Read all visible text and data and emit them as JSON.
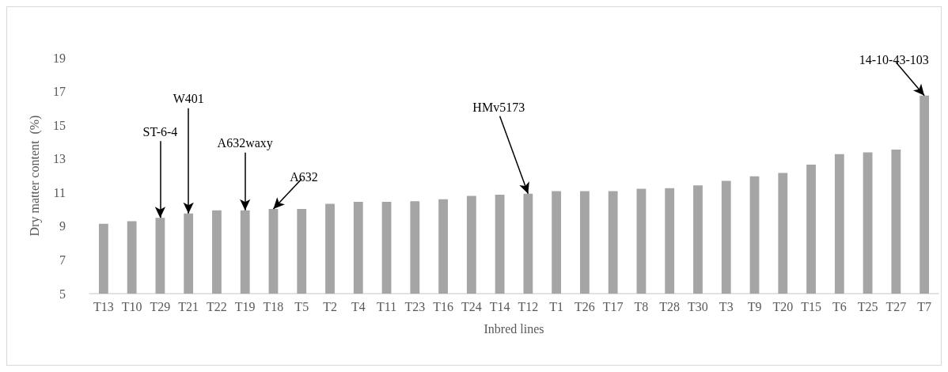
{
  "chart_data": {
    "type": "bar",
    "xlabel": "Inbred lines",
    "ylabel": "Dry matter content  (%)",
    "categories": [
      "T13",
      "T10",
      "T29",
      "T21",
      "T22",
      "T19",
      "T18",
      "T5",
      "T2",
      "T4",
      "T11",
      "T23",
      "T16",
      "T24",
      "T14",
      "T12",
      "T1",
      "T26",
      "T17",
      "T8",
      "T28",
      "T30",
      "T3",
      "T9",
      "T20",
      "T15",
      "T6",
      "T25",
      "T27",
      "T7"
    ],
    "values": [
      9.15,
      9.3,
      9.5,
      9.76,
      9.94,
      9.95,
      10.03,
      10.03,
      10.33,
      10.45,
      10.45,
      10.48,
      10.6,
      10.8,
      10.87,
      10.93,
      11.08,
      11.08,
      11.08,
      11.23,
      11.26,
      11.42,
      11.7,
      11.96,
      12.17,
      12.66,
      13.28,
      13.39,
      13.55,
      16.76
    ],
    "color": "#a5a5a5",
    "ylim": [
      5,
      19
    ],
    "yticks": [
      5,
      7,
      9,
      11,
      13,
      15,
      17,
      19
    ],
    "grid": false,
    "annotations": [
      {
        "text": "ST-6-4",
        "x": "T29",
        "y": 9.5
      },
      {
        "text": "W401",
        "x": "T21",
        "y": 9.76
      },
      {
        "text": "A632waxy",
        "x": "T19",
        "y": 9.95
      },
      {
        "text": "A632",
        "x": "T18",
        "y": 10.03
      },
      {
        "text": "HMv5173",
        "x": "T12",
        "y": 10.93
      },
      {
        "text": "14-10-43-103",
        "x": "T7",
        "y": 16.76
      }
    ]
  }
}
